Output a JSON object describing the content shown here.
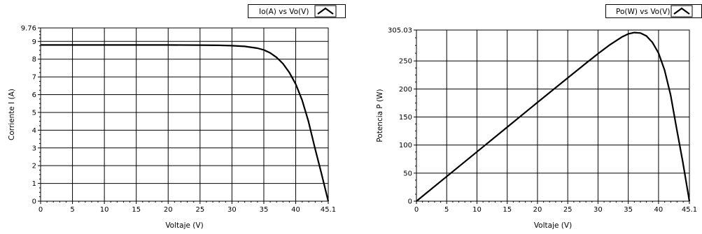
{
  "chart_data": [
    {
      "type": "line",
      "legend": {
        "label": "Io(A) vs Vo(V)",
        "placement": "top-right",
        "color": "#000000"
      },
      "xlabel": "Voltaje (V)",
      "ylabel": "Corriente I (A)",
      "xlim": [
        0,
        45.1
      ],
      "ylim": [
        0,
        9.76
      ],
      "xticks": [
        "0",
        "5",
        "10",
        "15",
        "20",
        "25",
        "30",
        "35",
        "40",
        "45.1"
      ],
      "xtick_values": [
        0,
        5,
        10,
        15,
        20,
        25,
        30,
        35,
        40,
        45.1
      ],
      "yticks": [
        "0",
        "1",
        "2",
        "3",
        "4",
        "5",
        "6",
        "7",
        "8",
        "9",
        "9.76"
      ],
      "ytick_values": [
        0,
        1,
        2,
        3,
        4,
        5,
        6,
        7,
        8,
        9,
        9.76
      ],
      "grid": true,
      "series": [
        {
          "x": [
            0,
            5,
            10,
            15,
            20,
            25,
            28,
            30,
            32,
            34,
            35,
            36,
            37,
            38,
            39,
            40,
            41,
            42,
            43,
            44,
            45.1
          ],
          "y": [
            8.8,
            8.8,
            8.8,
            8.8,
            8.8,
            8.79,
            8.78,
            8.76,
            8.72,
            8.62,
            8.52,
            8.35,
            8.1,
            7.75,
            7.25,
            6.6,
            5.7,
            4.5,
            3.0,
            1.6,
            0
          ]
        }
      ]
    },
    {
      "type": "line",
      "legend": {
        "label": "Po(W) vs Vo(V)",
        "placement": "top-right",
        "color": "#000000"
      },
      "xlabel": "Voltaje (V)",
      "ylabel": "Potencia P (W)",
      "xlim": [
        0,
        45.1
      ],
      "ylim": [
        0,
        305.03
      ],
      "xticks": [
        "0",
        "5",
        "10",
        "15",
        "20",
        "25",
        "30",
        "35",
        "40",
        "45.1"
      ],
      "xtick_values": [
        0,
        5,
        10,
        15,
        20,
        25,
        30,
        35,
        40,
        45.1
      ],
      "yticks": [
        "0",
        "50",
        "100",
        "150",
        "200",
        "250",
        "305.03"
      ],
      "ytick_values": [
        0,
        50,
        100,
        150,
        200,
        250,
        305.03
      ],
      "grid": true,
      "series": [
        {
          "x": [
            0,
            5,
            10,
            15,
            20,
            25,
            28,
            30,
            32,
            34,
            35,
            36,
            37,
            38,
            39,
            40,
            41,
            42,
            43,
            44,
            45.1
          ],
          "y": [
            0,
            44,
            88,
            132,
            176,
            219.8,
            245.8,
            262.8,
            279,
            293,
            298.2,
            300.6,
            299.7,
            294.5,
            282.8,
            264,
            233.7,
            189,
            129,
            70.4,
            0
          ]
        }
      ]
    }
  ]
}
